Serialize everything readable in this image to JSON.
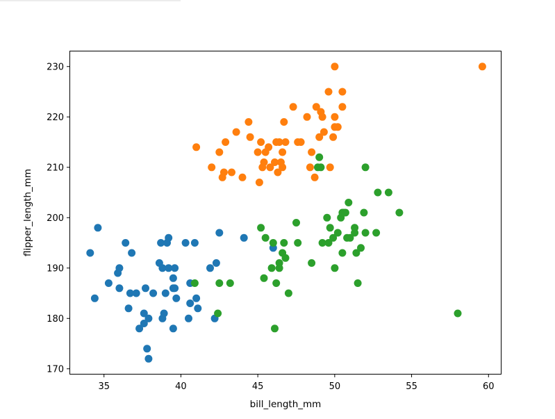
{
  "chart_data": {
    "type": "scatter",
    "title": "",
    "xlabel": "bill_length_mm",
    "ylabel": "flipper_length_mm",
    "xlim": [
      32.8,
      60.8
    ],
    "ylim": [
      169,
      233
    ],
    "xticks": [
      35,
      40,
      45,
      50,
      55,
      60
    ],
    "yticks": [
      170,
      180,
      190,
      200,
      210,
      220,
      230
    ],
    "grid": false,
    "legend": "none",
    "series": [
      {
        "color": "#1f77b4",
        "points": [
          [
            34.1,
            193
          ],
          [
            34.4,
            184
          ],
          [
            34.6,
            198
          ],
          [
            35.3,
            187
          ],
          [
            35.9,
            189
          ],
          [
            36.0,
            190
          ],
          [
            36.0,
            186
          ],
          [
            36.4,
            195
          ],
          [
            36.6,
            182
          ],
          [
            36.7,
            185
          ],
          [
            36.8,
            193
          ],
          [
            37.1,
            185
          ],
          [
            37.3,
            178
          ],
          [
            37.6,
            179
          ],
          [
            37.6,
            181
          ],
          [
            37.7,
            186
          ],
          [
            37.8,
            174
          ],
          [
            37.9,
            172
          ],
          [
            37.9,
            180
          ],
          [
            38.2,
            185
          ],
          [
            38.6,
            191
          ],
          [
            38.7,
            195
          ],
          [
            38.8,
            190
          ],
          [
            38.8,
            180
          ],
          [
            38.9,
            181
          ],
          [
            39.0,
            185
          ],
          [
            39.1,
            195
          ],
          [
            39.2,
            196
          ],
          [
            39.2,
            190
          ],
          [
            39.5,
            178
          ],
          [
            39.5,
            188
          ],
          [
            39.5,
            186
          ],
          [
            39.6,
            190
          ],
          [
            39.6,
            186
          ],
          [
            39.7,
            184
          ],
          [
            40.3,
            195
          ],
          [
            40.5,
            180
          ],
          [
            40.6,
            187
          ],
          [
            40.6,
            183
          ],
          [
            40.9,
            195
          ],
          [
            41.0,
            184
          ],
          [
            41.1,
            182
          ],
          [
            41.9,
            190
          ],
          [
            42.2,
            180
          ],
          [
            42.3,
            191
          ],
          [
            42.5,
            197
          ],
          [
            44.1,
            196
          ],
          [
            46.0,
            194
          ]
        ]
      },
      {
        "color": "#ff7f0e",
        "points": [
          [
            41.0,
            214
          ],
          [
            42.0,
            210
          ],
          [
            42.5,
            213
          ],
          [
            42.7,
            208
          ],
          [
            42.8,
            209
          ],
          [
            42.9,
            215
          ],
          [
            43.3,
            209
          ],
          [
            43.6,
            217
          ],
          [
            44.0,
            208
          ],
          [
            44.4,
            219
          ],
          [
            44.5,
            216
          ],
          [
            45.0,
            213
          ],
          [
            45.1,
            207
          ],
          [
            45.2,
            215
          ],
          [
            45.3,
            210
          ],
          [
            45.4,
            211
          ],
          [
            45.5,
            213
          ],
          [
            45.7,
            214
          ],
          [
            45.8,
            210
          ],
          [
            46.1,
            211
          ],
          [
            46.2,
            215
          ],
          [
            46.3,
            209
          ],
          [
            46.4,
            215
          ],
          [
            46.5,
            211
          ],
          [
            46.6,
            210
          ],
          [
            46.6,
            213
          ],
          [
            46.7,
            219
          ],
          [
            46.8,
            215
          ],
          [
            47.3,
            222
          ],
          [
            47.6,
            215
          ],
          [
            47.8,
            215
          ],
          [
            48.2,
            220
          ],
          [
            48.4,
            210
          ],
          [
            48.5,
            213
          ],
          [
            48.7,
            208
          ],
          [
            48.8,
            222
          ],
          [
            49.0,
            216
          ],
          [
            49.1,
            221
          ],
          [
            49.2,
            220
          ],
          [
            49.3,
            217
          ],
          [
            49.6,
            225
          ],
          [
            49.7,
            210
          ],
          [
            49.9,
            216
          ],
          [
            50.0,
            230
          ],
          [
            50.0,
            220
          ],
          [
            50.0,
            218
          ],
          [
            50.2,
            218
          ],
          [
            50.5,
            225
          ],
          [
            50.5,
            222
          ],
          [
            59.6,
            230
          ]
        ]
      },
      {
        "color": "#2ca02c",
        "points": [
          [
            40.9,
            187
          ],
          [
            42.4,
            181
          ],
          [
            42.5,
            187
          ],
          [
            43.2,
            187
          ],
          [
            45.2,
            198
          ],
          [
            45.4,
            188
          ],
          [
            45.5,
            196
          ],
          [
            45.9,
            190
          ],
          [
            46.0,
            195
          ],
          [
            46.1,
            178
          ],
          [
            46.2,
            187
          ],
          [
            46.4,
            190
          ],
          [
            46.4,
            191
          ],
          [
            46.6,
            193
          ],
          [
            46.7,
            195
          ],
          [
            46.8,
            192
          ],
          [
            47.0,
            185
          ],
          [
            47.5,
            199
          ],
          [
            47.6,
            195
          ],
          [
            48.5,
            191
          ],
          [
            48.9,
            210
          ],
          [
            49.0,
            212
          ],
          [
            49.1,
            210
          ],
          [
            49.2,
            195
          ],
          [
            49.5,
            200
          ],
          [
            49.6,
            195
          ],
          [
            49.7,
            198
          ],
          [
            49.9,
            196
          ],
          [
            50.0,
            190
          ],
          [
            50.2,
            197
          ],
          [
            50.4,
            200
          ],
          [
            50.5,
            201
          ],
          [
            50.5,
            193
          ],
          [
            50.6,
            201
          ],
          [
            50.7,
            201
          ],
          [
            50.8,
            196
          ],
          [
            50.9,
            203
          ],
          [
            51.0,
            196
          ],
          [
            51.3,
            198
          ],
          [
            51.3,
            197
          ],
          [
            51.4,
            193
          ],
          [
            51.5,
            187
          ],
          [
            51.7,
            194
          ],
          [
            51.9,
            201
          ],
          [
            52.0,
            197
          ],
          [
            52.0,
            210
          ],
          [
            52.7,
            197
          ],
          [
            52.8,
            205
          ],
          [
            53.5,
            205
          ],
          [
            54.2,
            201
          ],
          [
            58.0,
            181
          ]
        ]
      }
    ]
  }
}
